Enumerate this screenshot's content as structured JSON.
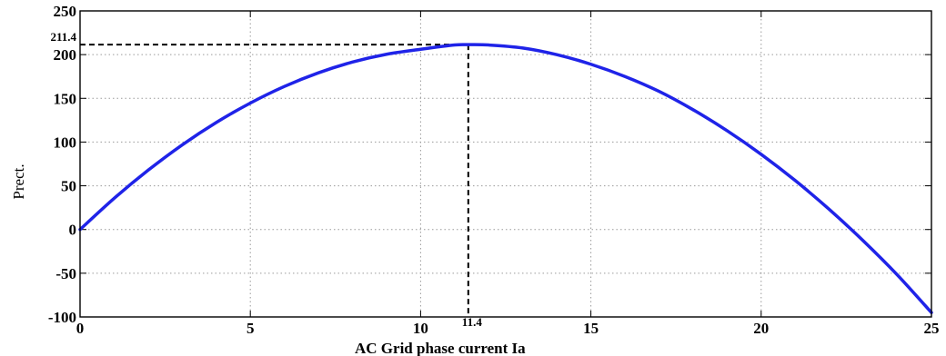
{
  "chart_data": {
    "type": "line",
    "title": "",
    "xlabel": "AC Grid phase current Ia",
    "ylabel": "Prect.",
    "xlim": [
      0,
      25
    ],
    "ylim": [
      -100,
      250
    ],
    "xticks": [
      0,
      5,
      10,
      15,
      20,
      25
    ],
    "yticks": [
      -100,
      -50,
      0,
      50,
      100,
      150,
      200,
      250
    ],
    "grid": true,
    "series": [
      {
        "color": "#1f23e8",
        "x": [
          0,
          1,
          2,
          3,
          4,
          5,
          6,
          7,
          8,
          9,
          10,
          11,
          11.4,
          12,
          13,
          14,
          15,
          16,
          17,
          18,
          19,
          20,
          21,
          22,
          23,
          24,
          25
        ],
        "y": [
          0,
          35.6,
          67.8,
          96.8,
          122.4,
          144.6,
          163.6,
          179.2,
          191.5,
          200.4,
          206.1,
          211.0,
          211.4,
          211.0,
          207.6,
          200.0,
          189.0,
          175.0,
          158.0,
          137.0,
          113.0,
          86.0,
          56.0,
          23.0,
          -13.0,
          -52.0,
          -95.0
        ]
      }
    ],
    "annotations": [
      {
        "text": "211.4",
        "axis": "y",
        "value": 211.4
      },
      {
        "text": "11.4",
        "axis": "x",
        "value": 11.4
      }
    ],
    "peak": {
      "x": 11.4,
      "y": 211.4
    }
  }
}
